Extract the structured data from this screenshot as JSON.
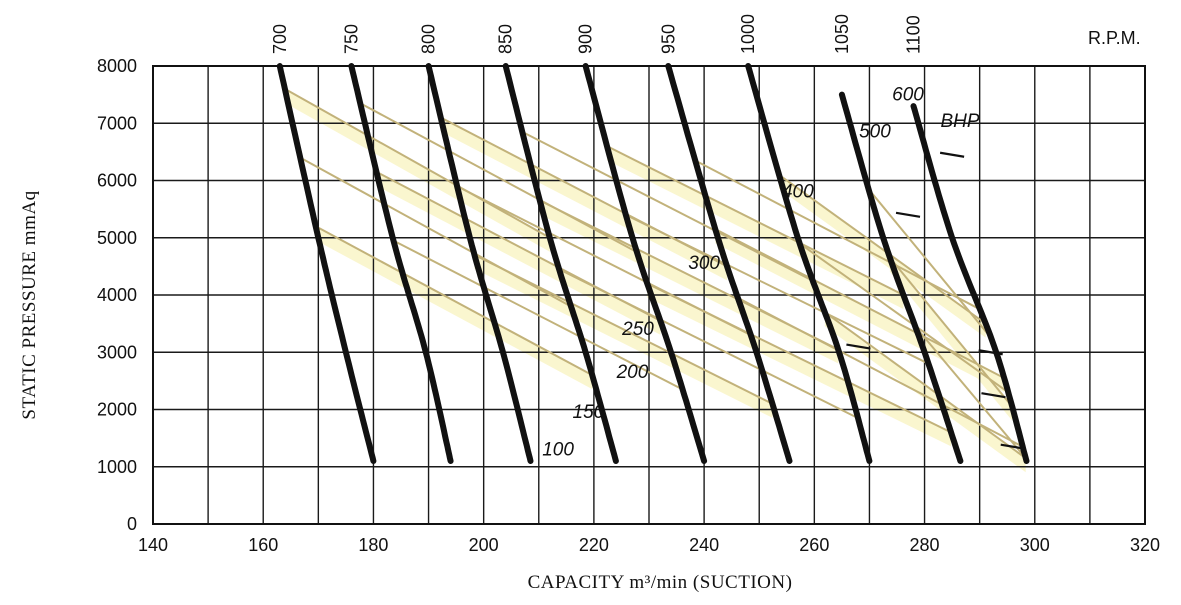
{
  "chart_data": {
    "type": "line",
    "title": "",
    "xlabel": "CAPACITY m³/min (SUCTION)",
    "ylabel": "STATIC PRESSURE mmAq",
    "rpm_header": "R.P.M.",
    "bhp_header": "BHP",
    "xlim": [
      140,
      320
    ],
    "ylim": [
      0,
      8000
    ],
    "x_ticks": [
      "140",
      "160",
      "180",
      "200",
      "220",
      "240",
      "260",
      "280",
      "300",
      "320"
    ],
    "y_ticks": [
      "0",
      "1000",
      "2000",
      "3000",
      "4000",
      "5000",
      "6000",
      "7000",
      "8000"
    ],
    "grid": true,
    "series": [
      {
        "name": "700",
        "points": [
          [
            163.0,
            8000
          ],
          [
            170.0,
            5000
          ],
          [
            175.0,
            3000
          ],
          [
            180.0,
            1100
          ]
        ]
      },
      {
        "name": "750",
        "points": [
          [
            176.0,
            8000
          ],
          [
            183.5,
            5000
          ],
          [
            189.5,
            3000
          ],
          [
            194.0,
            1100
          ]
        ]
      },
      {
        "name": "800",
        "points": [
          [
            190.0,
            8000
          ],
          [
            197.5,
            5000
          ],
          [
            203.5,
            3000
          ],
          [
            208.5,
            1100
          ]
        ]
      },
      {
        "name": "850",
        "points": [
          [
            204.0,
            8000
          ],
          [
            212.0,
            5000
          ],
          [
            218.5,
            3000
          ],
          [
            224.0,
            1100
          ]
        ]
      },
      {
        "name": "900",
        "points": [
          [
            218.5,
            8000
          ],
          [
            227.0,
            5000
          ],
          [
            234.0,
            3000
          ],
          [
            240.0,
            1100
          ]
        ]
      },
      {
        "name": "950",
        "points": [
          [
            233.5,
            8000
          ],
          [
            242.5,
            5000
          ],
          [
            249.5,
            3000
          ],
          [
            255.5,
            1100
          ]
        ]
      },
      {
        "name": "1000",
        "points": [
          [
            248.0,
            8000
          ],
          [
            257.0,
            5000
          ],
          [
            264.5,
            3000
          ],
          [
            270.0,
            1100
          ]
        ]
      },
      {
        "name": "1050",
        "points": [
          [
            265.0,
            7500
          ],
          [
            272.5,
            5000
          ],
          [
            280.0,
            3000
          ],
          [
            286.5,
            1100
          ]
        ]
      },
      {
        "name": "1100",
        "points": [
          [
            278.0,
            7300
          ],
          [
            285.0,
            5000
          ],
          [
            293.0,
            3000
          ],
          [
            298.5,
            1100
          ]
        ]
      }
    ],
    "bhp_labels": [
      "100",
      "150",
      "200",
      "250",
      "300",
      "400",
      "500",
      "600"
    ]
  }
}
